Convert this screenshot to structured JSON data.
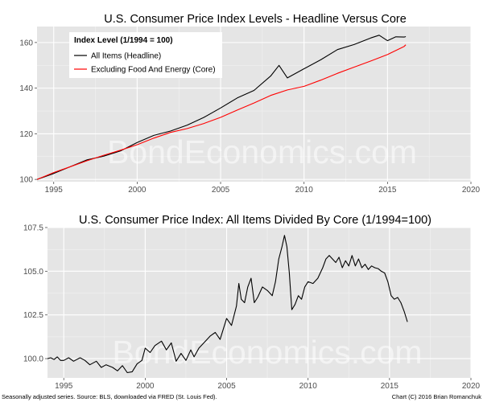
{
  "colors": {
    "panel_bg": "#e5e5e5",
    "grid_major": "#ffffff",
    "grid_minor": "#f2f2f2",
    "headline": "#000000",
    "core": "#ff0000",
    "ratio": "#000000"
  },
  "watermark": "BondEconomics.com",
  "footer": {
    "left": "Seasonally adjusted series. Source: BLS, downloaded via FRED (St. Louis Fed).",
    "right": "Chart (C) 2016 Brian Romanchuk"
  },
  "chart_data": [
    {
      "type": "line",
      "title": "U.S. Consumer Price Index Levels - Headline Versus Core",
      "xlabel": "",
      "ylabel": "",
      "xlim": [
        1994,
        2020
      ],
      "ylim": [
        99,
        167
      ],
      "x_ticks": [
        1995,
        2000,
        2005,
        2010,
        2015,
        2020
      ],
      "y_ticks": [
        100,
        120,
        140,
        160
      ],
      "grid": true,
      "legend": {
        "title": "Index Level (1/1994 = 100)",
        "position": "top-left"
      },
      "series": [
        {
          "name": "All Items (Headline)",
          "color": "#000000",
          "x": [
            1994.0,
            1995.0,
            1996.0,
            1997.0,
            1998.0,
            1999.0,
            2000.0,
            2001.0,
            2002.0,
            2003.0,
            2004.0,
            2005.0,
            2006.0,
            2007.0,
            2008.0,
            2008.5,
            2009.0,
            2010.0,
            2011.0,
            2012.0,
            2013.0,
            2014.0,
            2014.5,
            2015.0,
            2015.5,
            2016.0,
            2016.1
          ],
          "y": [
            100.0,
            102.6,
            105.6,
            108.6,
            110.2,
            112.5,
            116.2,
            119.3,
            121.2,
            123.8,
            127.2,
            131.3,
            135.7,
            139.0,
            145.3,
            150.0,
            144.5,
            148.5,
            152.4,
            156.9,
            159.1,
            162.0,
            163.2,
            160.8,
            162.5,
            162.4,
            162.6
          ]
        },
        {
          "name": "Excluding Food And Energy (Core)",
          "color": "#ff0000",
          "x": [
            1994.0,
            1995.0,
            1996.0,
            1997.0,
            1998.0,
            1999.0,
            2000.0,
            2001.0,
            2002.0,
            2003.0,
            2004.0,
            2005.0,
            2006.0,
            2007.0,
            2008.0,
            2009.0,
            2010.0,
            2011.0,
            2012.0,
            2013.0,
            2014.0,
            2015.0,
            2016.0,
            2016.1
          ],
          "y": [
            100.0,
            103.0,
            105.6,
            108.2,
            110.6,
            112.8,
            115.2,
            118.1,
            120.6,
            122.3,
            124.5,
            127.2,
            130.4,
            133.5,
            136.8,
            139.2,
            140.8,
            143.5,
            146.5,
            149.2,
            151.9,
            154.7,
            158.3,
            159.0
          ]
        }
      ]
    },
    {
      "type": "line",
      "title": "U.S. Consumer Price Index: All Items Divided By Core (1/1994=100)",
      "xlabel": "",
      "ylabel": "",
      "xlim": [
        1994,
        2020
      ],
      "ylim": [
        98.9,
        107.5
      ],
      "x_ticks": [
        1995,
        2000,
        2005,
        2010,
        2015,
        2020
      ],
      "y_ticks": [
        100.0,
        102.5,
        105.0,
        107.5
      ],
      "y_tick_labels": [
        "100.0",
        "102.5",
        "105.0",
        "107.5"
      ],
      "grid": true,
      "series": [
        {
          "name": "",
          "color": "#000000",
          "x": [
            1994.0,
            1994.2,
            1994.4,
            1994.6,
            1994.8,
            1995.0,
            1995.3,
            1995.6,
            1996.0,
            1996.3,
            1996.6,
            1997.0,
            1997.3,
            1997.6,
            1998.0,
            1998.3,
            1998.6,
            1998.9,
            1999.2,
            1999.5,
            1999.8,
            2000.0,
            2000.3,
            2000.6,
            2001.0,
            2001.3,
            2001.6,
            2001.9,
            2002.2,
            2002.5,
            2002.8,
            2003.0,
            2003.3,
            2003.6,
            2004.0,
            2004.3,
            2004.6,
            2005.0,
            2005.3,
            2005.6,
            2005.75,
            2005.9,
            2006.1,
            2006.3,
            2006.5,
            2006.7,
            2006.9,
            2007.2,
            2007.5,
            2007.8,
            2008.0,
            2008.2,
            2008.4,
            2008.55,
            2008.7,
            2008.85,
            2009.0,
            2009.2,
            2009.4,
            2009.6,
            2009.8,
            2010.0,
            2010.3,
            2010.6,
            2010.9,
            2011.1,
            2011.3,
            2011.5,
            2011.7,
            2011.9,
            2012.1,
            2012.3,
            2012.5,
            2012.7,
            2012.9,
            2013.1,
            2013.3,
            2013.5,
            2013.7,
            2013.9,
            2014.1,
            2014.3,
            2014.5,
            2014.7,
            2014.9,
            2015.1,
            2015.3,
            2015.5,
            2015.7,
            2015.9,
            2016.1
          ],
          "y": [
            100.0,
            100.05,
            99.95,
            100.1,
            99.9,
            99.9,
            100.05,
            99.85,
            100.05,
            99.9,
            99.65,
            99.85,
            99.5,
            99.65,
            99.5,
            99.3,
            99.6,
            99.2,
            99.25,
            99.7,
            99.9,
            100.6,
            100.35,
            100.75,
            101.0,
            100.5,
            100.9,
            99.85,
            100.3,
            99.9,
            100.5,
            100.1,
            100.6,
            100.9,
            101.3,
            101.5,
            101.1,
            102.3,
            101.9,
            103.0,
            104.3,
            103.4,
            103.2,
            104.1,
            104.6,
            103.2,
            103.5,
            104.1,
            103.9,
            103.6,
            104.4,
            105.7,
            106.4,
            107.05,
            106.4,
            104.9,
            102.8,
            103.1,
            103.6,
            103.4,
            104.1,
            104.4,
            104.3,
            104.6,
            105.2,
            105.7,
            105.9,
            105.7,
            105.5,
            105.8,
            105.2,
            105.6,
            105.3,
            105.9,
            105.3,
            105.7,
            105.2,
            105.4,
            105.1,
            105.3,
            105.2,
            105.15,
            105.0,
            104.9,
            104.4,
            103.6,
            103.4,
            103.5,
            103.2,
            102.7,
            102.1
          ]
        }
      ]
    }
  ]
}
